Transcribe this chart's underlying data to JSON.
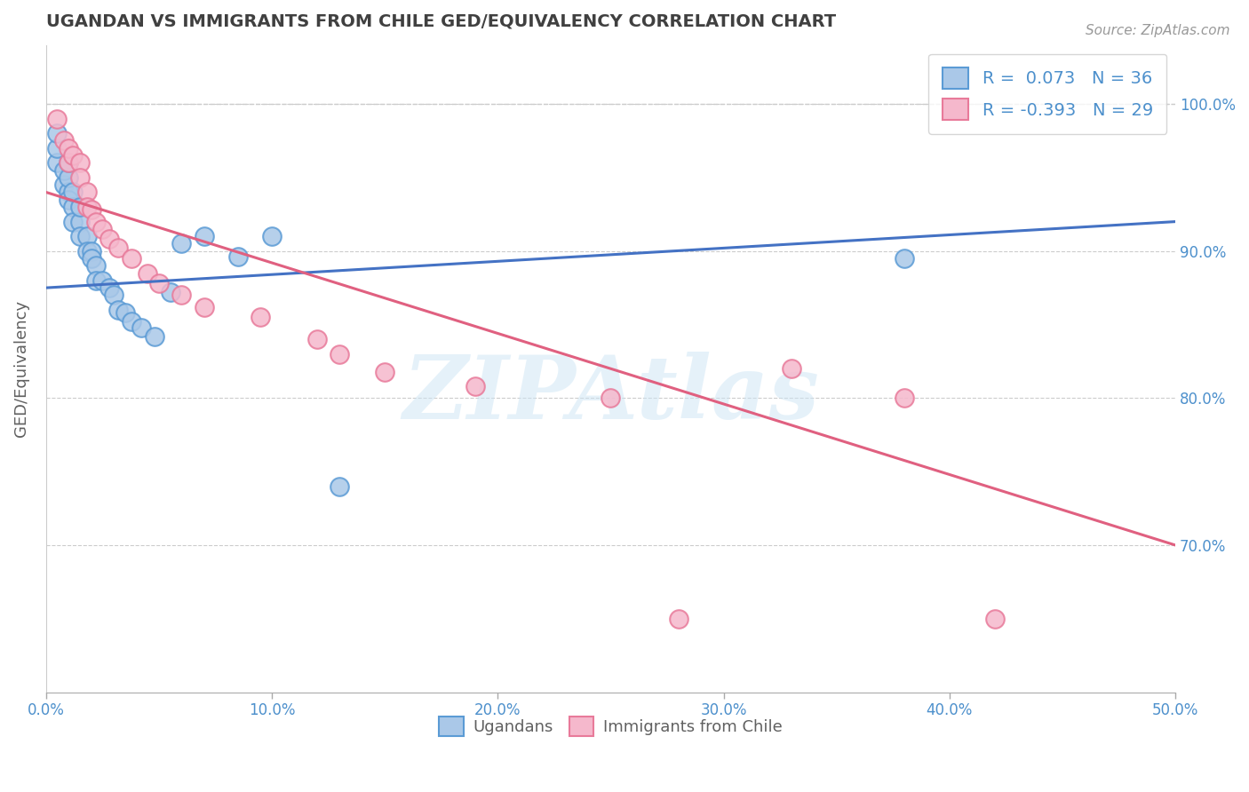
{
  "title": "UGANDAN VS IMMIGRANTS FROM CHILE GED/EQUIVALENCY CORRELATION CHART",
  "source": "Source: ZipAtlas.com",
  "ylabel": "GED/Equivalency",
  "xlim": [
    0.0,
    0.5
  ],
  "ylim": [
    0.6,
    1.04
  ],
  "xticks": [
    0.0,
    0.1,
    0.2,
    0.3,
    0.4,
    0.5
  ],
  "xtick_labels": [
    "0.0%",
    "10.0%",
    "20.0%",
    "30.0%",
    "40.0%",
    "50.0%"
  ],
  "yticks": [
    0.7,
    0.8,
    0.9,
    1.0
  ],
  "ytick_labels": [
    "70.0%",
    "80.0%",
    "90.0%",
    "100.0%"
  ],
  "blue_color": "#aac8e8",
  "pink_color": "#f5b8cc",
  "blue_edge_color": "#5b9bd5",
  "pink_edge_color": "#e87a9a",
  "blue_line_color": "#4472c4",
  "pink_line_color": "#e06080",
  "legend_blue_label": "R =  0.073   N = 36",
  "legend_pink_label": "R = -0.393   N = 29",
  "watermark": "ZIPAtlas",
  "background_color": "#ffffff",
  "grid_color": "#cccccc",
  "title_color": "#404040",
  "axis_label_color": "#606060",
  "tick_color": "#4d90cc",
  "legend_text_color": "#4d90cc",
  "blue_scatter_x": [
    0.005,
    0.005,
    0.005,
    0.008,
    0.008,
    0.01,
    0.01,
    0.01,
    0.01,
    0.012,
    0.012,
    0.012,
    0.015,
    0.015,
    0.015,
    0.018,
    0.018,
    0.02,
    0.02,
    0.022,
    0.022,
    0.025,
    0.028,
    0.03,
    0.032,
    0.035,
    0.038,
    0.042,
    0.048,
    0.055,
    0.06,
    0.07,
    0.085,
    0.1,
    0.13,
    0.38
  ],
  "blue_scatter_y": [
    0.96,
    0.97,
    0.98,
    0.945,
    0.955,
    0.94,
    0.95,
    0.96,
    0.935,
    0.93,
    0.94,
    0.92,
    0.92,
    0.93,
    0.91,
    0.91,
    0.9,
    0.9,
    0.895,
    0.89,
    0.88,
    0.88,
    0.875,
    0.87,
    0.86,
    0.858,
    0.852,
    0.848,
    0.842,
    0.872,
    0.905,
    0.91,
    0.896,
    0.91,
    0.74,
    0.895
  ],
  "pink_scatter_x": [
    0.005,
    0.008,
    0.01,
    0.01,
    0.012,
    0.015,
    0.015,
    0.018,
    0.018,
    0.02,
    0.022,
    0.025,
    0.028,
    0.032,
    0.038,
    0.045,
    0.05,
    0.06,
    0.07,
    0.095,
    0.12,
    0.13,
    0.15,
    0.19,
    0.25,
    0.28,
    0.33,
    0.38,
    0.42
  ],
  "pink_scatter_y": [
    0.99,
    0.975,
    0.96,
    0.97,
    0.965,
    0.96,
    0.95,
    0.94,
    0.93,
    0.928,
    0.92,
    0.915,
    0.908,
    0.902,
    0.895,
    0.885,
    0.878,
    0.87,
    0.862,
    0.855,
    0.84,
    0.83,
    0.818,
    0.808,
    0.8,
    0.65,
    0.82,
    0.8,
    0.65
  ],
  "blue_trend_x0": 0.0,
  "blue_trend_x1": 0.5,
  "blue_trend_y0": 0.875,
  "blue_trend_y1": 0.92,
  "pink_trend_x0": 0.0,
  "pink_trend_x1": 0.5,
  "pink_trend_y0": 0.94,
  "pink_trend_y1": 0.7,
  "dashed_line_y": 1.0
}
